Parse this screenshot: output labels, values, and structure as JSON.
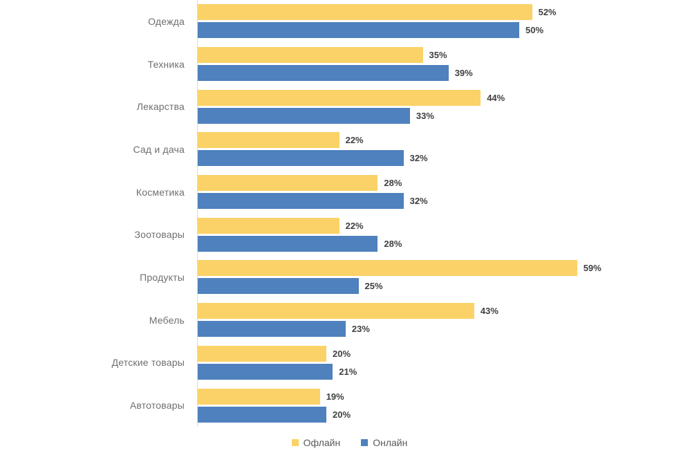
{
  "chart_data": {
    "type": "bar",
    "orientation": "horizontal",
    "title": "",
    "xlabel": "",
    "ylabel": "",
    "xlim": [
      0,
      65
    ],
    "grid": false,
    "legend_position": "bottom",
    "value_suffix": "%",
    "categories": [
      "Одежда",
      "Техника",
      "Лекарства",
      "Сад и дача",
      "Косметика",
      "Зоотовары",
      "Продукты",
      "Мебель",
      "Детские товары",
      "Автотовары"
    ],
    "series": [
      {
        "name": "Офлайн",
        "color": "#FBD267",
        "values": [
          52,
          35,
          44,
          22,
          28,
          22,
          59,
          43,
          20,
          19
        ]
      },
      {
        "name": "Онлайн",
        "color": "#4E81BD",
        "values": [
          50,
          39,
          33,
          32,
          32,
          28,
          25,
          23,
          21,
          20
        ]
      }
    ]
  },
  "colors": {
    "offline_bar": "#FBD267",
    "online_bar": "#4E81BD",
    "value_label_text": "#404040",
    "category_label_text": "#6F6F6F",
    "legend_text": "#595959",
    "axis_line": "#D9D9D9",
    "background": "#FFFFFF"
  }
}
